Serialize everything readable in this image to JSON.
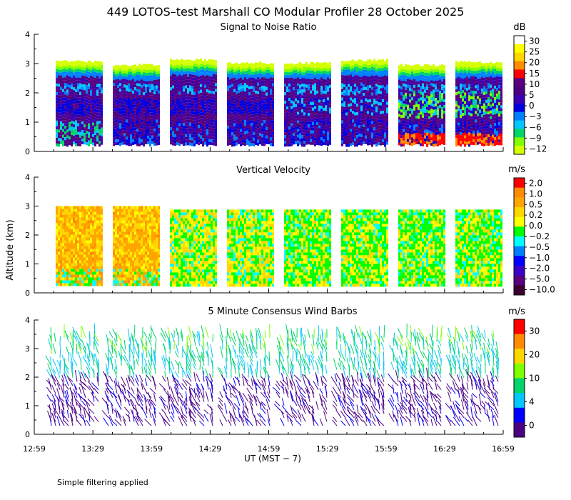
{
  "title": "449 LOTOS–test Marshall CO Modular Profiler 28 October 2025",
  "footer_note": "Simple filtering applied",
  "colors": {
    "snr": [
      "#d4ff00",
      "#7fff00",
      "#00d46a",
      "#00c8ff",
      "#0080ff",
      "#0000e0",
      "#3c00b4",
      "#4b0082",
      "#5a007f",
      "#ff0000",
      "#ff8c00",
      "#ffd700",
      "#ffff00",
      "#ffffff"
    ],
    "vel": [
      "#3c0030",
      "#5a0080",
      "#3c00c8",
      "#0000ff",
      "#0080ff",
      "#00ffff",
      "#00ff00",
      "#ffff00",
      "#ffd700",
      "#ffa500",
      "#ff8c00",
      "#ff0000"
    ],
    "wind": [
      "#4b0082",
      "#0000ff",
      "#00c8ff",
      "#00d46a",
      "#7fff00",
      "#ffd700",
      "#ff8c00",
      "#ff0000"
    ]
  },
  "chart_data": [
    {
      "type": "heatmap",
      "title": "Signal to Noise Ratio",
      "ylabel": "",
      "yticks": [
        "0",
        "1",
        "2",
        "3",
        "4"
      ],
      "ylim": [
        0,
        4
      ],
      "colorbar_unit": "dB",
      "colorbar_labels": [
        "30",
        "25",
        "20",
        "15",
        "10",
        "5",
        "0",
        "−3",
        "−6",
        "−9",
        "−12"
      ]
    },
    {
      "type": "heatmap",
      "title": "Vertical Velocity",
      "ylabel": "Altitude (km)",
      "yticks": [
        "0",
        "1",
        "2",
        "3",
        "4"
      ],
      "ylim": [
        0,
        4
      ],
      "colorbar_unit": "m/s",
      "colorbar_labels": [
        "2.0",
        "1.0",
        "0.5",
        "0.2",
        "0.0",
        "−0.2",
        "−0.5",
        "−1.0",
        "−2.0",
        "−5.0",
        "−10.0"
      ]
    },
    {
      "type": "scatter",
      "title": "5 Minute Consensus Wind Barbs",
      "ylabel": "",
      "yticks": [
        "0",
        "1",
        "2",
        "3",
        "4"
      ],
      "ylim": [
        0,
        4
      ],
      "colorbar_unit": "m/s",
      "colorbar_labels": [
        "30",
        "20",
        "10",
        "4",
        "0"
      ]
    }
  ],
  "xaxis": {
    "ticks": [
      "12:59",
      "13:29",
      "13:59",
      "14:29",
      "14:59",
      "15:29",
      "15:59",
      "16:29",
      "16:59"
    ],
    "label": "UT  (MST − 7)"
  }
}
